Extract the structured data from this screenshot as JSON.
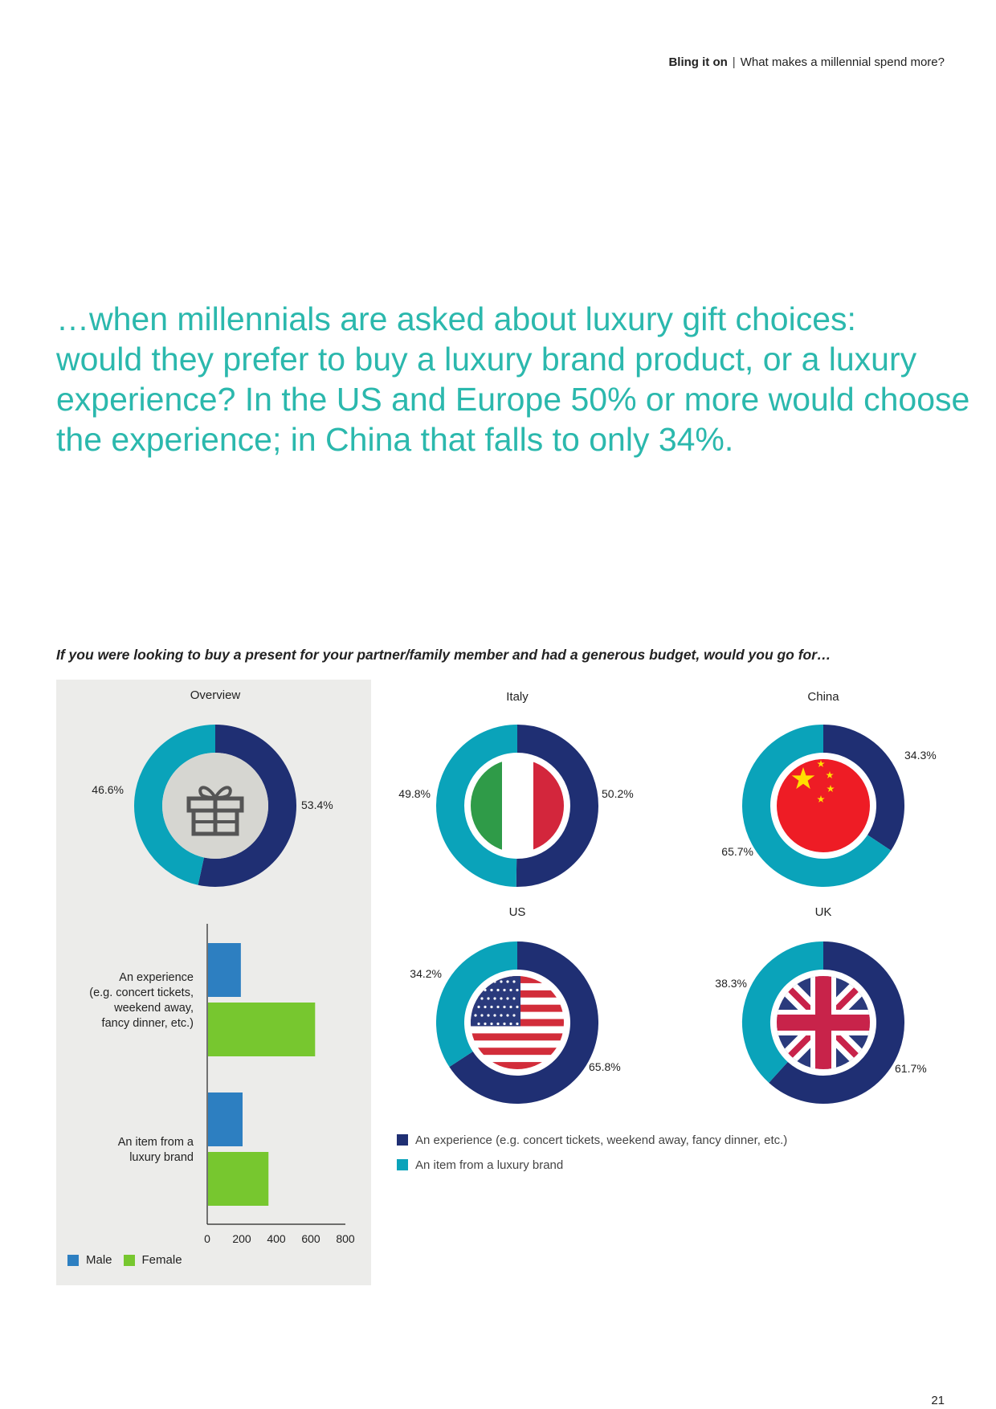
{
  "header": {
    "brand": "Bling it on",
    "subtitle": "What makes a millennial spend more?"
  },
  "headline": [
    "…when millennials are asked about luxury gift choices:",
    "would they prefer to buy a luxury brand product, or a luxury",
    "experience? In the US and Europe 50% or more would choose",
    "the experience; in China that falls to only 34%."
  ],
  "question": "If you were looking to buy a present for your partner/family member and had a generous budget, would you go for…",
  "page_number": "21",
  "colors": {
    "experience": "#1f2f73",
    "item": "#0aa3ba",
    "male": "#2d7fc1",
    "female": "#77c72f",
    "headline": "#2bb8ad",
    "panel": "#ececea"
  },
  "legend": {
    "experience": "An experience (e.g. concert tickets, weekend away, fancy dinner, etc.)",
    "item": "An item from a luxury brand"
  },
  "bar_legend": {
    "male": "Male",
    "female": "Female"
  },
  "chart_data": [
    {
      "type": "pie",
      "title": "Overview",
      "icon": "gift-icon",
      "slices": [
        {
          "name": "An experience (e.g. concert tickets, weekend away, fancy dinner, etc.)",
          "value": 53.4,
          "label": "53.4%"
        },
        {
          "name": "An item from a luxury brand",
          "value": 46.6,
          "label": "46.6%"
        }
      ]
    },
    {
      "type": "pie",
      "title": "Italy",
      "icon": "italy-flag-icon",
      "slices": [
        {
          "name": "An experience (e.g. concert tickets, weekend away, fancy dinner, etc.)",
          "value": 50.2,
          "label": "50.2%"
        },
        {
          "name": "An item from a luxury brand",
          "value": 49.8,
          "label": "49.8%"
        }
      ]
    },
    {
      "type": "pie",
      "title": "China",
      "icon": "china-flag-icon",
      "slices": [
        {
          "name": "An experience (e.g. concert tickets, weekend away, fancy dinner, etc.)",
          "value": 34.3,
          "label": "34.3%"
        },
        {
          "name": "An item from a luxury brand",
          "value": 65.7,
          "label": "65.7%"
        }
      ]
    },
    {
      "type": "pie",
      "title": "US",
      "icon": "us-flag-icon",
      "slices": [
        {
          "name": "An experience (e.g. concert tickets, weekend away, fancy dinner, etc.)",
          "value": 65.8,
          "label": "65.8%"
        },
        {
          "name": "An item from a luxury brand",
          "value": 34.2,
          "label": "34.2%"
        }
      ]
    },
    {
      "type": "pie",
      "title": "UK",
      "icon": "uk-flag-icon",
      "slices": [
        {
          "name": "An experience (e.g. concert tickets, weekend away, fancy dinner, etc.)",
          "value": 61.7,
          "label": "61.7%"
        },
        {
          "name": "An item from a luxury brand",
          "value": 38.3,
          "label": "38.3%"
        }
      ]
    },
    {
      "type": "bar",
      "orientation": "horizontal",
      "categories": [
        [
          "An experience",
          "(e.g. concert tickets,",
          "weekend away,",
          "fancy dinner, etc.)"
        ],
        [
          "An item from a",
          "luxury brand"
        ]
      ],
      "series": [
        {
          "name": "Male",
          "values": [
            190,
            200
          ]
        },
        {
          "name": "Female",
          "values": [
            620,
            350
          ]
        }
      ],
      "xlim": [
        0,
        800
      ],
      "xticks": [
        "0",
        "200",
        "400",
        "600",
        "800"
      ],
      "grid": false,
      "legend": "bottom-left"
    }
  ]
}
